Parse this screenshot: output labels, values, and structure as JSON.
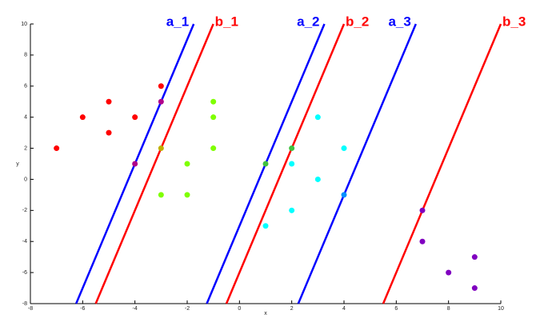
{
  "chart_data": {
    "type": "scatter",
    "x_label": "x",
    "y_label": "y",
    "xlim": [
      -8,
      10
    ],
    "ylim": [
      -8,
      10
    ],
    "xticks": [
      -8,
      -6,
      -4,
      -2,
      0,
      2,
      4,
      6,
      8,
      10
    ],
    "yticks": [
      -8,
      -6,
      -4,
      -2,
      0,
      2,
      4,
      6,
      8,
      10
    ],
    "series": [
      {
        "color": "#ff0000",
        "x": [
          -7,
          -6,
          -5,
          -5,
          -4,
          -3
        ],
        "values": [
          2,
          4,
          5,
          3,
          4,
          6
        ]
      },
      {
        "color": "#b0008a",
        "x": [
          -3,
          -4
        ],
        "values": [
          5,
          1
        ]
      },
      {
        "color": "#c0b000",
        "x": [
          -3
        ],
        "values": [
          2
        ]
      },
      {
        "color": "#7fff00",
        "x": [
          -2,
          -3,
          -2,
          -1,
          -1,
          -1
        ],
        "values": [
          1,
          -1,
          -1,
          5,
          4,
          2
        ]
      },
      {
        "color": "#40c040",
        "x": [
          1,
          2
        ],
        "values": [
          1,
          2
        ]
      },
      {
        "color": "#00ffff",
        "x": [
          3,
          4,
          2,
          3,
          2,
          1
        ],
        "values": [
          4,
          2,
          1,
          0,
          -2,
          -3
        ]
      },
      {
        "color": "#0090ff",
        "x": [
          4
        ],
        "values": [
          -1
        ]
      },
      {
        "color": "#8000c0",
        "x": [
          7,
          7,
          8,
          9,
          9
        ],
        "values": [
          -2,
          -4,
          -6,
          -5,
          -7
        ]
      }
    ],
    "lines": [
      {
        "name": "a_1",
        "color": "#0000ff",
        "x": [
          -6.25,
          -1.75
        ],
        "y": [
          -8,
          10
        ]
      },
      {
        "name": "b_1",
        "color": "#ff0000",
        "x": [
          -5.5,
          -1
        ],
        "y": [
          -8,
          10
        ]
      },
      {
        "name": "a_2",
        "color": "#0000ff",
        "x": [
          -1.25,
          3.25
        ],
        "y": [
          -8,
          10
        ]
      },
      {
        "name": "b_2",
        "color": "#ff0000",
        "x": [
          -0.5,
          4
        ],
        "y": [
          -8,
          10
        ]
      },
      {
        "name": "a_3",
        "color": "#0000ff",
        "x": [
          2.25,
          6.75
        ],
        "y": [
          -8,
          10
        ]
      },
      {
        "name": "b_3",
        "color": "#ff0000",
        "x": [
          5.5,
          10
        ],
        "y": [
          -8,
          10
        ]
      }
    ]
  }
}
